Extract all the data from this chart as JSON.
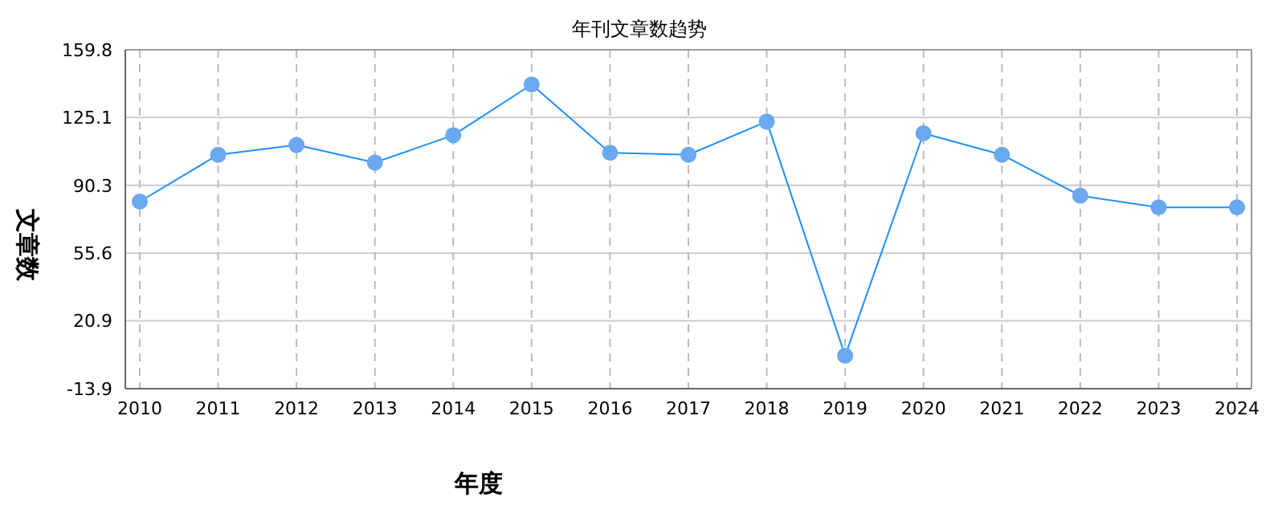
{
  "chart_data": {
    "type": "line",
    "title": "年刊文章数趋势",
    "xlabel": "年度",
    "ylabel": "文章数",
    "categories": [
      "2010",
      "2011",
      "2012",
      "2013",
      "2014",
      "2015",
      "2016",
      "2017",
      "2018",
      "2019",
      "2020",
      "2021",
      "2022",
      "2023",
      "2024"
    ],
    "series": [
      {
        "color": "#1e8fff",
        "values": [
          82,
          106,
          111,
          102,
          116,
          142,
          107,
          106,
          123,
          3,
          117,
          106,
          85,
          79,
          79
        ]
      }
    ],
    "ylim": [
      -13.9,
      159.8
    ],
    "yticks": [
      -13.9,
      20.9,
      55.6,
      90.3,
      125.1,
      159.8
    ],
    "grid": true,
    "marker": "circle",
    "line_style": "solid"
  }
}
